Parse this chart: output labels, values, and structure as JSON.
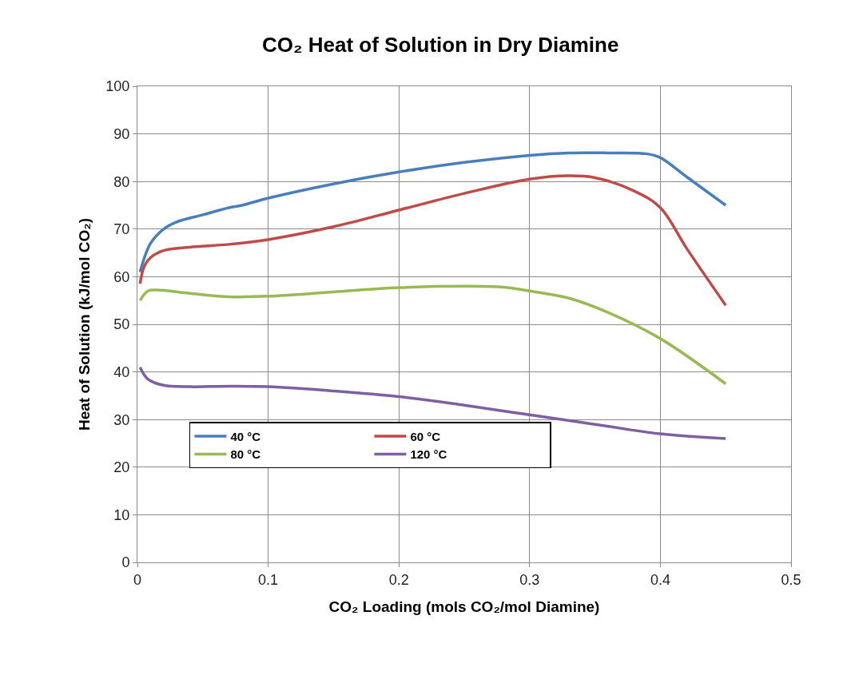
{
  "chart_data": {
    "type": "line",
    "title": "CO₂ Heat of Solution in Dry Diamine",
    "xlabel": "CO₂ Loading (mols CO₂/mol Diamine)",
    "ylabel": "Heat of Solution (kJ/mol CO₂)",
    "xlim": [
      0,
      0.5
    ],
    "xticks": [
      0,
      0.1,
      0.2,
      0.3,
      0.4,
      0.5
    ],
    "ylim": [
      0,
      100
    ],
    "yticks": [
      0,
      10,
      20,
      30,
      40,
      50,
      60,
      70,
      80,
      90,
      100
    ],
    "grid": true,
    "legend": "bottom left",
    "marker": "none",
    "line_style": "solid",
    "series": [
      {
        "name": "40 °C",
        "color": "#4a7ebb",
        "x": [
          0.002,
          0.01,
          0.02,
          0.03,
          0.05,
          0.07,
          0.08,
          0.1,
          0.15,
          0.2,
          0.25,
          0.3,
          0.33,
          0.36,
          0.39,
          0.4,
          0.42,
          0.45
        ],
        "values": [
          61,
          67,
          70,
          71.5,
          73,
          74.5,
          75,
          76.5,
          79.5,
          82,
          84,
          85.5,
          86,
          86,
          85.8,
          85,
          81,
          75
        ]
      },
      {
        "name": "60 °C",
        "color": "#be4b48",
        "x": [
          0.002,
          0.005,
          0.01,
          0.02,
          0.04,
          0.07,
          0.1,
          0.15,
          0.2,
          0.25,
          0.3,
          0.33,
          0.35,
          0.38,
          0.4,
          0.42,
          0.45
        ],
        "values": [
          58.5,
          62,
          64,
          65.5,
          66.2,
          66.8,
          67.8,
          70.5,
          74,
          77.5,
          80.5,
          81.2,
          80.8,
          78,
          74.5,
          66,
          54
        ]
      },
      {
        "name": "80 °C",
        "color": "#98b954",
        "x": [
          0.002,
          0.008,
          0.015,
          0.04,
          0.07,
          0.1,
          0.15,
          0.2,
          0.25,
          0.28,
          0.3,
          0.33,
          0.36,
          0.4,
          0.45
        ],
        "values": [
          55,
          57,
          57.2,
          56.5,
          55.8,
          55.9,
          56.8,
          57.7,
          58,
          57.8,
          57,
          55.5,
          52.5,
          47,
          37.5
        ]
      },
      {
        "name": "120 °C",
        "color": "#7d60a0",
        "x": [
          0.002,
          0.008,
          0.02,
          0.04,
          0.07,
          0.1,
          0.15,
          0.2,
          0.25,
          0.3,
          0.35,
          0.4,
          0.45
        ],
        "values": [
          41,
          38.5,
          37.2,
          36.9,
          37,
          36.9,
          36,
          34.8,
          33,
          31,
          29,
          27,
          26
        ]
      }
    ]
  }
}
